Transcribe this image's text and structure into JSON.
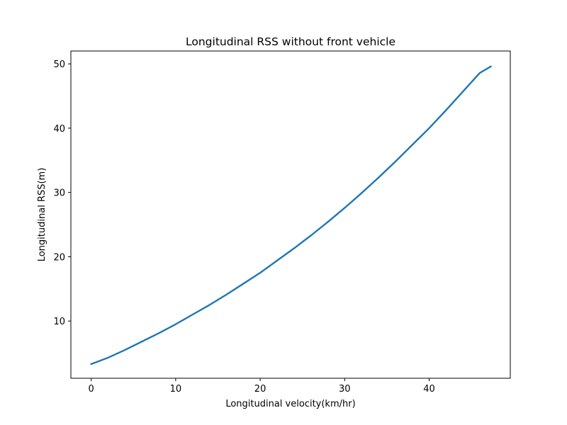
{
  "chart_data": {
    "type": "line",
    "title": "Longitudinal RSS without front vehicle",
    "xlabel": "Longitudinal velocity(km/hr)",
    "ylabel": "Longitudinal RSS(m)",
    "xlim": [
      -2.4,
      49.6
    ],
    "ylim": [
      1.1,
      52.0
    ],
    "x_ticks": [
      0,
      10,
      20,
      30,
      40
    ],
    "y_ticks": [
      10,
      20,
      30,
      40,
      50
    ],
    "grid": false,
    "series_color": "#1f77b4",
    "series": [
      {
        "x": [
          0,
          2,
          4,
          6,
          8,
          10,
          12,
          14,
          16,
          18,
          20,
          22,
          24,
          26,
          28,
          30,
          32,
          34,
          36,
          38,
          40,
          42,
          44,
          46,
          47.3
        ],
        "y": [
          3.3,
          4.3,
          5.5,
          6.8,
          8.1,
          9.5,
          11.0,
          12.5,
          14.1,
          15.8,
          17.5,
          19.4,
          21.3,
          23.3,
          25.4,
          27.6,
          29.9,
          32.3,
          34.8,
          37.4,
          40.0,
          42.8,
          45.7,
          48.6,
          49.6
        ]
      }
    ]
  }
}
